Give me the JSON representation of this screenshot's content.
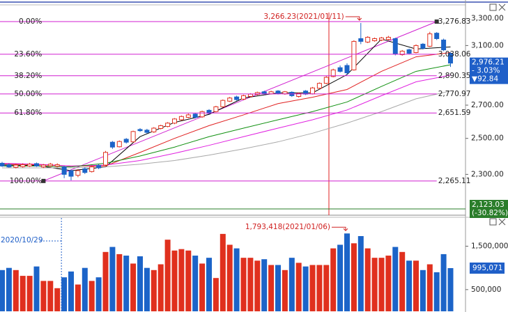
{
  "chart_data": [
    {
      "type": "candlestick",
      "open": [
        2360,
        2352,
        2338,
        2342,
        2345,
        2358,
        2340,
        2346,
        2344,
        2340,
        2320,
        2295,
        2330,
        2315,
        2348,
        2350,
        2478,
        2452,
        2495,
        2480,
        2552,
        2548,
        2538,
        2558,
        2570,
        2590,
        2610,
        2625,
        2645,
        2628,
        2668,
        2660,
        2690,
        2725,
        2752,
        2738,
        2755,
        2768,
        2785,
        2772,
        2790,
        2772,
        2782,
        2755,
        2790,
        2772,
        2808,
        2840,
        2885,
        2945,
        2960,
        2930,
        3150,
        3125,
        3135,
        3140,
        3145,
        3150,
        3035,
        3070,
        3050,
        3110,
        3095,
        3190,
        3140,
        3045
      ],
      "high": [
        2368,
        2360,
        2358,
        2360,
        2362,
        2364,
        2356,
        2362,
        2360,
        2345,
        2325,
        2328,
        2338,
        2348,
        2355,
        2428,
        2485,
        2488,
        2502,
        2545,
        2560,
        2556,
        2566,
        2580,
        2596,
        2620,
        2636,
        2648,
        2652,
        2666,
        2675,
        2696,
        2736,
        2752,
        2760,
        2766,
        2776,
        2786,
        2792,
        2792,
        2796,
        2790,
        2788,
        2780,
        2796,
        2816,
        2846,
        2888,
        2938,
        2960,
        2975,
        3138,
        3266.23,
        3168,
        3158,
        3162,
        3170,
        3156,
        3068,
        3078,
        3108,
        3118,
        3200,
        3198,
        3150,
        3052
      ],
      "low": [
        2340,
        2335,
        2332,
        2336,
        2340,
        2340,
        2334,
        2340,
        2338,
        2280,
        2268,
        2285,
        2302,
        2310,
        2328,
        2345,
        2440,
        2448,
        2470,
        2476,
        2538,
        2528,
        2532,
        2552,
        2565,
        2584,
        2605,
        2620,
        2618,
        2622,
        2644,
        2655,
        2685,
        2720,
        2728,
        2732,
        2750,
        2762,
        2765,
        2768,
        2768,
        2766,
        2752,
        2748,
        2764,
        2768,
        2802,
        2835,
        2880,
        2912,
        2895,
        2925,
        3110,
        3118,
        3128,
        3132,
        3138,
        3030,
        3028,
        3038,
        3045,
        3072,
        3090,
        3140,
        3060,
        2950
      ],
      "close": [
        2345,
        2340,
        2350,
        2352,
        2355,
        2345,
        2350,
        2355,
        2352,
        2300,
        2290,
        2320,
        2310,
        2340,
        2335,
        2420,
        2450,
        2482,
        2478,
        2540,
        2545,
        2535,
        2560,
        2575,
        2590,
        2615,
        2630,
        2640,
        2625,
        2660,
        2650,
        2690,
        2730,
        2745,
        2735,
        2760,
        2770,
        2780,
        2772,
        2785,
        2775,
        2785,
        2760,
        2775,
        2770,
        2810,
        2840,
        2880,
        2930,
        2920,
        2910,
        3130,
        3130,
        3160,
        3150,
        3155,
        3160,
        3040,
        3060,
        3045,
        3100,
        3080,
        3185,
        3150,
        3069.05,
        2976.21
      ],
      "up_color": "#e0301e",
      "down_color": "#1c64c8",
      "ylim": [
        2089,
        3445
      ],
      "log_scale": true,
      "yticks": [
        {
          "value": 2300,
          "label": "2,300.00"
        },
        {
          "value": 2500,
          "label": "2,500.00"
        },
        {
          "value": 2700,
          "label": "2,700.00"
        },
        {
          "value": 3100,
          "label": "3,100.00"
        },
        {
          "value": 3300,
          "label": "3,300.00"
        }
      ],
      "moving_averages": [
        {
          "color": "#000000",
          "x": [
            0,
            5,
            10,
            15,
            20,
            25,
            30,
            35,
            40,
            45,
            50,
            55,
            60,
            65
          ],
          "values": [
            2350,
            2348,
            2320,
            2340,
            2510,
            2594,
            2643,
            2745,
            2778,
            2778,
            2898,
            3147,
            3075,
            3090
          ]
        },
        {
          "color": "#e02020",
          "x": [
            0,
            5,
            10,
            15,
            20,
            25,
            30,
            35,
            40,
            45,
            50,
            55,
            60,
            65
          ],
          "values": [
            2355,
            2352,
            2345,
            2345,
            2420,
            2500,
            2575,
            2640,
            2710,
            2750,
            2800,
            2920,
            3020,
            3050
          ]
        },
        {
          "color": "#e020e0",
          "x": [
            0,
            5,
            10,
            15,
            20,
            25,
            30,
            35,
            40,
            45,
            50,
            55,
            60,
            65
          ],
          "values": [
            2360,
            2355,
            2345,
            2350,
            2375,
            2415,
            2460,
            2510,
            2560,
            2610,
            2670,
            2760,
            2850,
            2895
          ]
        },
        {
          "color": "#109010",
          "x": [
            0,
            5,
            10,
            15,
            20,
            25,
            30,
            35,
            40,
            45,
            50,
            55,
            60,
            65
          ],
          "values": [
            2345,
            2345,
            2340,
            2360,
            2400,
            2450,
            2510,
            2560,
            2610,
            2660,
            2720,
            2820,
            2920,
            2965
          ]
        },
        {
          "color": "#a8a8a8",
          "x": [
            0,
            5,
            10,
            15,
            20,
            25,
            30,
            35,
            40,
            45,
            50,
            55,
            60,
            65
          ],
          "values": [
            2335,
            2335,
            2335,
            2340,
            2355,
            2375,
            2405,
            2440,
            2480,
            2530,
            2590,
            2660,
            2740,
            2790
          ]
        }
      ],
      "fibonacci": {
        "color": "#d01fd0",
        "x": [
          6,
          63
        ],
        "levels": [
          {
            "ratio_label": "0.00%",
            "value": 3276.83,
            "label": "3,276.83"
          },
          {
            "ratio_label": "23.60%",
            "value": 3038.06,
            "label": "3,038.06"
          },
          {
            "ratio_label": "38.20%",
            "value": 2890.35,
            "label": "2,890.35"
          },
          {
            "ratio_label": "50.00%",
            "value": 2770.97,
            "label": "2,770.97"
          },
          {
            "ratio_label": "61.80%",
            "value": 2651.59,
            "label": "2,651.59"
          },
          {
            "ratio_label": "100.00%",
            "value": 2265.11,
            "label": "2,265.11"
          }
        ]
      },
      "level_line": {
        "value": 2123.03,
        "label": "2,123.03",
        "change": "(-30.82%)",
        "color": "#2a7d2a"
      },
      "last_price": {
        "value": 2976.21,
        "label": "2,976.21",
        "change_pct": "- 3.03%",
        "change": "▼92.84",
        "color": "#1f5fc8"
      },
      "annotations": [
        {
          "text": "3,266.23(2021/01/11)",
          "x": 52,
          "value": 3266.23
        }
      ]
    },
    {
      "type": "bar",
      "values": [
        950000,
        1000000,
        950000,
        817000,
        817000,
        1033000,
        700000,
        700000,
        533000,
        783000,
        917000,
        617000,
        1000000,
        700000,
        783000,
        1367000,
        1483000,
        1317000,
        1283000,
        1100000,
        1267000,
        1000000,
        950000,
        1083000,
        1650000,
        1400000,
        1433000,
        1400000,
        1283000,
        1100000,
        1233000,
        767000,
        1783000,
        1533000,
        1450000,
        1233000,
        1233000,
        1167000,
        1200000,
        1067000,
        1067000,
        950000,
        1233000,
        1117000,
        1033000,
        1067000,
        1067000,
        1067000,
        1450000,
        1533000,
        1793418,
        1567000,
        1733000,
        1450000,
        1233000,
        1233000,
        1283000,
        1483000,
        1367000,
        1167000,
        1167000,
        950000,
        1083000,
        900000,
        1317000,
        995071
      ],
      "ylim": [
        0,
        2150000
      ],
      "yticks": [
        {
          "value": 500000,
          "label": "500,000"
        },
        {
          "value": 1500000,
          "label": "1,500,000"
        }
      ],
      "last_value": {
        "value": 995071,
        "label": "995,071",
        "color": "#1f5fc8"
      },
      "annotations": [
        {
          "text": "1,793,418(2021/01/06)",
          "x": 50,
          "value": 1793418
        }
      ],
      "crosshair": {
        "label": "2020/10/29",
        "x": 8.6
      }
    }
  ]
}
